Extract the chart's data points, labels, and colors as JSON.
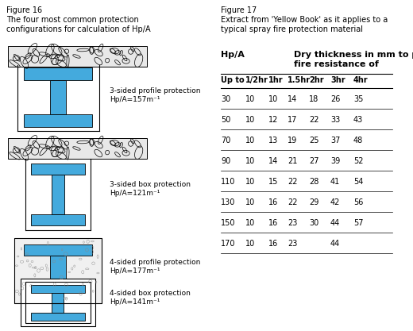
{
  "fig16_title": "Figure 16",
  "fig16_subtitle": "The four most common protection\nconfigurations for calculation of Hp/A",
  "fig17_title": "Figure 17",
  "fig17_subtitle": "Extract from 'Yellow Book' as it applies to a\ntypical spray fire protection material",
  "table_header_col1": "Hp/A",
  "table_header_col2_line1": "Dry thickness in mm to provide",
  "table_header_col2_line2": "fire resistance of",
  "table_subheader": [
    "Up to",
    "1/2hr",
    "1hr",
    "1.5hr",
    "2hr",
    "3hr",
    "4hr"
  ],
  "table_data": [
    [
      30,
      10,
      10,
      14,
      18,
      26,
      35
    ],
    [
      50,
      10,
      12,
      17,
      22,
      33,
      43
    ],
    [
      70,
      10,
      13,
      19,
      25,
      37,
      48
    ],
    [
      90,
      10,
      14,
      21,
      27,
      39,
      52
    ],
    [
      110,
      10,
      15,
      22,
      28,
      41,
      54
    ],
    [
      130,
      10,
      16,
      22,
      29,
      42,
      56
    ],
    [
      150,
      10,
      16,
      23,
      30,
      44,
      57
    ],
    [
      170,
      10,
      16,
      23,
      null,
      44,
      null
    ]
  ],
  "steel_color": "#44AADD",
  "bg_color": "#ffffff",
  "line_color": "#000000",
  "label1_line1": "3-sided profile protection",
  "label1_line2": "Hp/A=157m⁻¹",
  "label2_line1": "3-sided box protection",
  "label2_line2": "Hp/A=121m⁻¹",
  "label3_line1": "4-sided profile protection",
  "label3_line2": "Hp/A=177m⁻¹",
  "label4_line1": "4-sided box protection",
  "label4_line2": "Hp/A=141m⁻¹"
}
